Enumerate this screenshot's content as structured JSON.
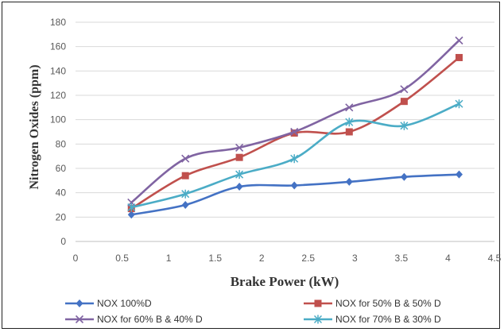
{
  "chart_data": {
    "type": "line",
    "title": "",
    "xlabel": "Brake Power (kW)",
    "ylabel": "Nitrogen Oxides  (ppm)",
    "xlim": [
      0,
      4.5
    ],
    "ylim": [
      0,
      180
    ],
    "xticks": [
      "0",
      "0.5",
      "1",
      "1.5",
      "2",
      "2.5",
      "3",
      "3.5",
      "4",
      "4.5"
    ],
    "yticks": [
      "0",
      "20",
      "40",
      "60",
      "80",
      "100",
      "120",
      "140",
      "160",
      "180"
    ],
    "x": [
      0.6,
      1.18,
      1.76,
      2.35,
      2.94,
      3.53,
      4.12
    ],
    "grid": "horizontal",
    "legend_position": "bottom",
    "series": [
      {
        "name": "NOX 100%D",
        "color": "#4472C4",
        "marker": "diamond",
        "values": [
          22,
          30,
          45,
          46,
          49,
          53,
          55
        ]
      },
      {
        "name": "NOX for 50% B & 50% D",
        "color": "#C0504D",
        "marker": "square",
        "values": [
          27,
          54,
          69,
          89,
          90,
          115,
          151
        ]
      },
      {
        "name": "NOX  for 60% B & 40% D",
        "color": "#8064A2",
        "marker": "x",
        "values": [
          32,
          68,
          77,
          90,
          110,
          125,
          165
        ]
      },
      {
        "name": "NOX for 70% B & 30% D",
        "color": "#4BACC6",
        "marker": "star",
        "values": [
          28,
          39,
          55,
          68,
          98,
          95,
          113
        ]
      }
    ]
  }
}
